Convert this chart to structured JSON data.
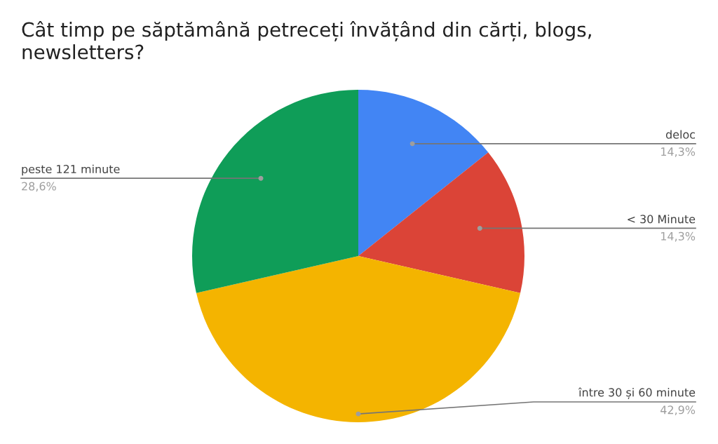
{
  "chart_data": {
    "type": "pie",
    "title": "Cât timp pe săptămână petreceți învățând din cărți, blogs, newsletters?",
    "categories": [
      "deloc",
      "< 30 Minute",
      "între 30 și 60 minute",
      "peste 121 minute"
    ],
    "values": [
      14.3,
      14.3,
      42.9,
      28.6
    ],
    "value_labels": [
      "14,3%",
      "14,3%",
      "42,9%",
      "28,6%"
    ],
    "colors": [
      "#4285f4",
      "#db4437",
      "#f4b400",
      "#0f9d58"
    ],
    "legend": false
  }
}
